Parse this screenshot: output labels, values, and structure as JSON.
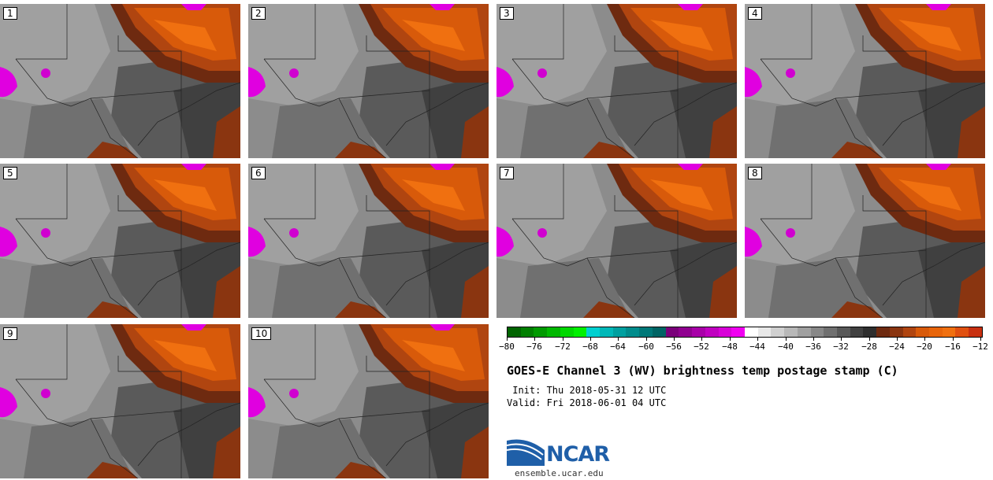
{
  "panels": [
    {
      "label": "1"
    },
    {
      "label": "2"
    },
    {
      "label": "3"
    },
    {
      "label": "4"
    },
    {
      "label": "5"
    },
    {
      "label": "6"
    },
    {
      "label": "7"
    },
    {
      "label": "8"
    },
    {
      "label": "9"
    },
    {
      "label": "10"
    }
  ],
  "colorbar": {
    "colors": [
      "#006400",
      "#007f00",
      "#009a00",
      "#00b800",
      "#00d800",
      "#00f000",
      "#00d0d0",
      "#00b8b8",
      "#00a0a0",
      "#008c8c",
      "#007878",
      "#006464",
      "#7a007a",
      "#900090",
      "#a800a8",
      "#c000c0",
      "#d800d8",
      "#f000f0",
      "#ffffff",
      "#e8e8e8",
      "#d0d0d0",
      "#b8b8b8",
      "#a0a0a0",
      "#888888",
      "#707070",
      "#585858",
      "#404040",
      "#2e2e2e",
      "#6e2a10",
      "#8a3510",
      "#b04510",
      "#d85a0a",
      "#e8650a",
      "#f07010",
      "#e05010",
      "#c83010"
    ],
    "tick_labels": [
      "−80",
      "−76",
      "−72",
      "−68",
      "−64",
      "−60",
      "−56",
      "−52",
      "−48",
      "−44",
      "−40",
      "−36",
      "−32",
      "−28",
      "−24",
      "−20",
      "−16",
      "−12"
    ]
  },
  "title": "GOES-E Channel 3 (WV) brightness temp postage stamp (C)",
  "init_line": " Init: Thu 2018-05-31 12 UTC",
  "valid_line": "Valid: Fri 2018-06-01 04 UTC",
  "logo": {
    "text": "NCAR",
    "url": "ensemble.ucar.edu"
  }
}
